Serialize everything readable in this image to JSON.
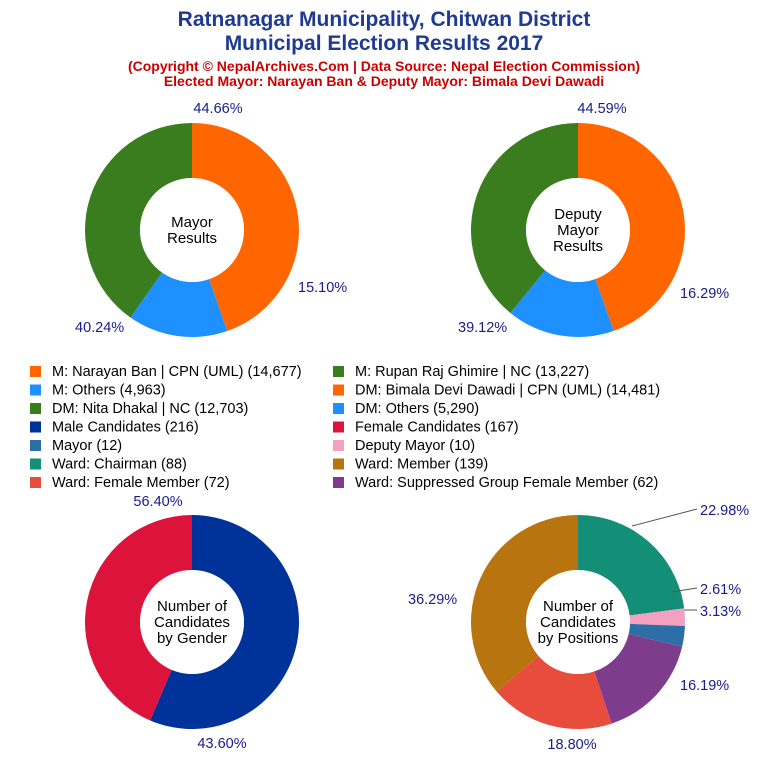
{
  "header": {
    "title_line1": "Ratnanagar Municipality, Chitwan District",
    "title_line2": "Municipal Election Results 2017",
    "copyright": "(Copyright © NepalArchives.Com | Data Source: Nepal Election Commission)",
    "elected": "Elected Mayor: Narayan Ban & Deputy Mayor: Bimala Devi Dawadi"
  },
  "legend": [
    {
      "label": "M: Narayan Ban | CPN (UML) (14,677)",
      "color": "#ff6600"
    },
    {
      "label": "M: Rupan Raj Ghimire | NC (13,227)",
      "color": "#3a7d1e"
    },
    {
      "label": "M: Others (4,963)",
      "color": "#1e90ff"
    },
    {
      "label": "DM: Bimala Devi Dawadi | CPN (UML) (14,481)",
      "color": "#ff6600"
    },
    {
      "label": "DM: Nita Dhakal | NC (12,703)",
      "color": "#3a7d1e"
    },
    {
      "label": "DM: Others (5,290)",
      "color": "#1e90ff"
    },
    {
      "label": "Male Candidates (216)",
      "color": "#003399"
    },
    {
      "label": "Female Candidates (167)",
      "color": "#dc143c"
    },
    {
      "label": "Mayor (12)",
      "color": "#2e6ea6"
    },
    {
      "label": "Deputy Mayor (10)",
      "color": "#f4a0c0"
    },
    {
      "label": "Ward: Chairman (88)",
      "color": "#148f77"
    },
    {
      "label": "Ward: Member (139)",
      "color": "#b8750f"
    },
    {
      "label": "Ward: Female Member (72)",
      "color": "#e74c3c"
    },
    {
      "label": "Ward: Suppressed Group Female Member (62)",
      "color": "#7d3c8c"
    }
  ],
  "chart_data": [
    {
      "type": "pie",
      "center_label": [
        "Mayor",
        "Results"
      ],
      "slices": [
        {
          "name": "M: Narayan Ban | CPN (UML)",
          "value": 14677,
          "pct_label": "44.66%",
          "color": "#ff6600"
        },
        {
          "name": "M: Others",
          "value": 4963,
          "pct_label": "15.10%",
          "color": "#1e90ff"
        },
        {
          "name": "M: Rupan Raj Ghimire | NC",
          "value": 13227,
          "pct_label": "40.24%",
          "color": "#3a7d1e"
        }
      ]
    },
    {
      "type": "pie",
      "center_label": [
        "Deputy",
        "Mayor",
        "Results"
      ],
      "slices": [
        {
          "name": "DM: Bimala Devi Dawadi | CPN (UML)",
          "value": 14481,
          "pct_label": "44.59%",
          "color": "#ff6600"
        },
        {
          "name": "DM: Others",
          "value": 5290,
          "pct_label": "16.29%",
          "color": "#1e90ff"
        },
        {
          "name": "DM: Nita Dhakal | NC",
          "value": 12703,
          "pct_label": "39.12%",
          "color": "#3a7d1e"
        }
      ]
    },
    {
      "type": "pie",
      "center_label": [
        "Number of",
        "Candidates",
        "by Gender"
      ],
      "slices": [
        {
          "name": "Male Candidates",
          "value": 216,
          "pct_label": "56.40%",
          "color": "#003399"
        },
        {
          "name": "Female Candidates",
          "value": 167,
          "pct_label": "43.60%",
          "color": "#dc143c"
        }
      ]
    },
    {
      "type": "pie",
      "center_label": [
        "Number of",
        "Candidates",
        "by Positions"
      ],
      "slices": [
        {
          "name": "Ward: Chairman",
          "value": 88,
          "pct_label": "22.98%",
          "color": "#148f77"
        },
        {
          "name": "Deputy Mayor",
          "value": 10,
          "pct_label": "2.61%",
          "color": "#f4a0c0"
        },
        {
          "name": "Mayor",
          "value": 12,
          "pct_label": "3.13%",
          "color": "#2e6ea6"
        },
        {
          "name": "Ward: Suppressed Group Female Member",
          "value": 62,
          "pct_label": "16.19%",
          "color": "#7d3c8c"
        },
        {
          "name": "Ward: Female Member",
          "value": 72,
          "pct_label": "18.80%",
          "color": "#e74c3c"
        },
        {
          "name": "Ward: Member",
          "value": 139,
          "pct_label": "36.29%",
          "color": "#b8750f"
        }
      ]
    }
  ]
}
